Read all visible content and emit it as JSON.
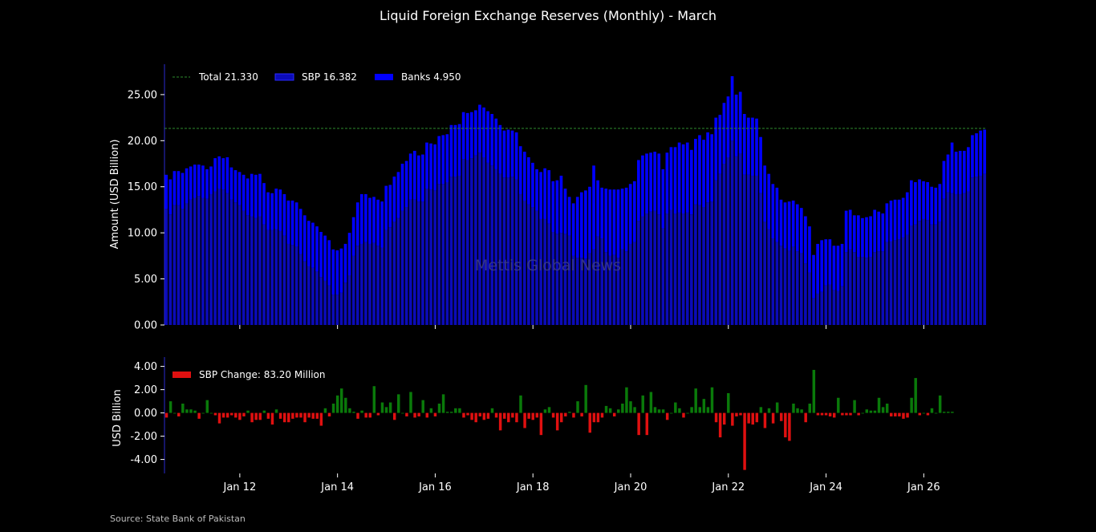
{
  "title": "Liquid Foreign Exchange Reserves (Monthly) - March",
  "source": "Source: State Bank of Pakistan",
  "watermark": "Mettis Global News",
  "colors": {
    "background": "#000000",
    "sbp": "#0b0bb8",
    "banks": "#0000ff",
    "total_line": "#2e8b2e",
    "positive": "#0a7a0a",
    "negative": "#e01010",
    "text": "#ffffff"
  },
  "chart_data": [
    {
      "type": "bar",
      "subtype": "stacked",
      "ylabel": "Amount (USD Billion)",
      "ylim": [
        0,
        28.3
      ],
      "yticks": [
        "0.00",
        "5.00",
        "10.00",
        "15.00",
        "20.00",
        "25.00"
      ],
      "legend": [
        "Total 21.330",
        "SBP 16.382",
        "Banks 4.950"
      ],
      "legend_position": "top-left",
      "reference_line": {
        "name": "Total",
        "value": 21.33
      },
      "series": [
        {
          "name": "SBP",
          "values": [
            12.6,
            12.0,
            13.0,
            13.0,
            12.6,
            13.2,
            13.6,
            13.8,
            14.0,
            13.8,
            13.7,
            14.2,
            14.5,
            14.8,
            14.7,
            14.3,
            13.6,
            13.3,
            13.0,
            12.4,
            11.9,
            11.8,
            11.6,
            11.8,
            10.9,
            10.3,
            10.3,
            10.4,
            10.2,
            9.7,
            8.8,
            8.7,
            8.5,
            7.7,
            6.9,
            6.4,
            6.2,
            5.8,
            5.2,
            4.8,
            4.3,
            3.3,
            3.3,
            3.5,
            4.6,
            5.4,
            7.5,
            8.6,
            8.8,
            9.0,
            8.8,
            8.9,
            8.6,
            8.4,
            10.3,
            10.6,
            11.2,
            11.6,
            12.4,
            12.8,
            13.6,
            13.6,
            13.4,
            13.4,
            14.8,
            14.7,
            14.6,
            15.3,
            15.3,
            15.5,
            16.1,
            16.1,
            16.2,
            18.0,
            17.9,
            18.1,
            18.4,
            18.7,
            18.2,
            17.6,
            17.3,
            16.9,
            16.4,
            16.0,
            16.0,
            16.1,
            15.8,
            14.2,
            13.5,
            13.1,
            12.8,
            12.4,
            11.5,
            11.5,
            11.0,
            10.1,
            9.9,
            10.0,
            9.9,
            9.7,
            7.5,
            7.3,
            7.3,
            7.2,
            7.8,
            8.2,
            9.6,
            9.4,
            7.9,
            7.5,
            7.6,
            7.3,
            8.2,
            8.0,
            8.8,
            9.0,
            11.3,
            11.8,
            12.1,
            12.3,
            12.4,
            12.0,
            10.5,
            12.1,
            12.5,
            12.1,
            12.2,
            12.1,
            12.2,
            12.0,
            13.1,
            13.0,
            12.8,
            13.3,
            13.4,
            15.7,
            16.4,
            17.5,
            18.2,
            20.0,
            18.3,
            18.6,
            16.3,
            16.3,
            16.2,
            16.2,
            14.3,
            11.2,
            10.4,
            9.4,
            9.0,
            8.6,
            8.3,
            8.1,
            8.5,
            8.0,
            7.8,
            6.7,
            5.7,
            2.9,
            3.4,
            3.6,
            4.3,
            4.4,
            3.8,
            3.7,
            4.2,
            7.9,
            8.2,
            7.9,
            7.4,
            7.4,
            7.3,
            7.4,
            7.9,
            8.0,
            8.0,
            9.0,
            9.1,
            9.2,
            9.3,
            9.5,
            9.8,
            10.8,
            10.9,
            11.3,
            11.5,
            11.4,
            10.9,
            10.9,
            11.2,
            13.7,
            14.4,
            14.3,
            14.2,
            14.2,
            14.3,
            14.5,
            16.0,
            16.1,
            16.2,
            16.4
          ],
          "color": "#0b0bb8"
        },
        {
          "name": "Banks",
          "values": [
            3.7,
            3.8,
            3.7,
            3.7,
            3.9,
            3.8,
            3.6,
            3.6,
            3.4,
            3.5,
            3.2,
            3.0,
            3.6,
            3.5,
            3.4,
            3.9,
            3.5,
            3.5,
            3.6,
            3.9,
            4.0,
            4.6,
            4.7,
            4.6,
            4.5,
            4.1,
            4.0,
            4.4,
            4.5,
            4.5,
            4.7,
            4.8,
            4.8,
            4.9,
            5.0,
            4.9,
            4.9,
            4.9,
            4.9,
            4.9,
            4.9,
            4.9,
            4.8,
            4.8,
            4.2,
            4.6,
            4.2,
            4.7,
            5.4,
            5.2,
            5.0,
            5.0,
            5.0,
            5.0,
            4.8,
            4.6,
            4.9,
            5.0,
            5.1,
            5.0,
            5.0,
            5.3,
            5.0,
            5.1,
            5.0,
            5.0,
            5.0,
            5.2,
            5.3,
            5.2,
            5.6,
            5.6,
            5.6,
            5.1,
            5.1,
            5.0,
            4.9,
            5.2,
            5.4,
            5.6,
            5.6,
            5.5,
            5.3,
            5.1,
            5.2,
            5.0,
            5.1,
            5.2,
            5.3,
            5.1,
            4.8,
            4.5,
            5.1,
            5.5,
            5.8,
            5.5,
            5.8,
            6.2,
            4.9,
            4.2,
            5.7,
            6.6,
            7.1,
            7.4,
            7.2,
            9.1,
            6.1,
            5.5,
            6.9,
            7.2,
            7.1,
            7.4,
            6.6,
            6.9,
            6.5,
            6.6,
            6.6,
            6.6,
            6.5,
            6.4,
            6.4,
            6.6,
            6.4,
            6.6,
            6.8,
            7.2,
            7.6,
            7.5,
            7.6,
            7.0,
            7.1,
            7.6,
            7.3,
            7.6,
            7.3,
            6.8,
            6.4,
            6.6,
            6.6,
            7.0,
            6.7,
            6.7,
            6.6,
            6.2,
            6.3,
            6.2,
            6.1,
            6.1,
            6.0,
            5.9,
            5.9,
            5.0,
            5.0,
            5.3,
            5.0,
            5.1,
            4.9,
            5.1,
            5.0,
            4.7,
            5.4,
            5.6,
            5.0,
            4.9,
            4.8,
            4.9,
            4.6,
            4.5,
            4.3,
            4.0,
            4.5,
            4.2,
            4.4,
            4.4,
            4.6,
            4.3,
            4.1,
            4.2,
            4.4,
            4.4,
            4.3,
            4.3,
            4.6,
            4.9,
            4.6,
            4.5,
            4.1,
            4.1,
            4.1,
            4.0,
            4.1,
            4.1,
            4.1,
            5.5,
            4.6,
            4.7,
            4.6,
            4.8,
            4.6,
            4.7,
            4.9,
            4.8,
            4.9,
            4.9
          ],
          "color": "#0000ff"
        }
      ]
    },
    {
      "type": "bar",
      "ylabel": "USD Billion",
      "ylim": [
        -5.2,
        4.8
      ],
      "yticks": [
        "-4.00",
        "-2.00",
        "0.00",
        "2.00",
        "4.00"
      ],
      "legend": [
        "SBP Change: 83.20 Million"
      ],
      "legend_position": "top-left",
      "series": [
        {
          "name": "SBP Change",
          "values": [
            -0.4,
            1.0,
            0.0,
            -0.3,
            0.8,
            0.3,
            0.3,
            0.2,
            -0.5,
            0.0,
            1.1,
            0.0,
            -0.2,
            -0.9,
            -0.4,
            -0.4,
            -0.2,
            -0.4,
            -0.6,
            -0.3,
            0.2,
            -0.8,
            -0.6,
            -0.6,
            0.2,
            -0.5,
            -1.0,
            0.3,
            -0.5,
            -0.8,
            -0.8,
            -0.5,
            -0.4,
            -0.4,
            -0.8,
            -0.4,
            -0.5,
            -0.5,
            -1.1,
            0.4,
            -0.3,
            0.8,
            1.5,
            2.1,
            1.3,
            0.4,
            0.1,
            -0.5,
            0.2,
            -0.4,
            -0.4,
            2.3,
            -0.2,
            0.9,
            0.5,
            0.9,
            -0.6,
            1.6,
            0.0,
            -0.3,
            1.8,
            -0.4,
            -0.3,
            1.1,
            -0.4,
            0.4,
            -0.3,
            0.8,
            1.6,
            0.1,
            0.1,
            0.4,
            0.4,
            -0.4,
            -0.2,
            -0.6,
            -0.8,
            -0.3,
            -0.6,
            -0.5,
            0.4,
            -0.4,
            -1.5,
            -0.5,
            -0.8,
            -0.4,
            -0.8,
            1.5,
            -1.3,
            -0.5,
            -0.6,
            -0.4,
            -1.9,
            0.3,
            0.5,
            -0.4,
            -1.5,
            -0.8,
            -0.3,
            0.1,
            -0.4,
            1.0,
            -0.3,
            2.4,
            -1.7,
            -0.8,
            -0.8,
            -0.4,
            0.6,
            0.4,
            -0.3,
            0.3,
            0.8,
            2.2,
            1.0,
            0.5,
            -1.9,
            1.5,
            -1.9,
            1.8,
            0.5,
            0.3,
            0.3,
            -0.6,
            0.0,
            0.9,
            0.4,
            -0.4,
            0.0,
            0.5,
            2.1,
            0.5,
            1.2,
            0.5,
            2.2,
            -0.8,
            -2.1,
            -1.0,
            1.7,
            -1.1,
            -0.3,
            -0.2,
            -4.9,
            -0.9,
            -1.0,
            -0.8,
            0.5,
            -1.3,
            0.4,
            -0.9,
            0.9,
            -0.7,
            -2.1,
            -2.4,
            0.8,
            0.4,
            0.3,
            -0.8,
            0.8,
            3.7,
            -0.2,
            -0.2,
            -0.2,
            -0.3,
            -0.4,
            1.3,
            -0.2,
            -0.2,
            -0.2,
            1.1,
            -0.2,
            0.0,
            0.3,
            0.2,
            0.2,
            1.3,
            0.5,
            0.8,
            -0.3,
            -0.3,
            -0.3,
            -0.5,
            -0.4,
            1.3,
            3.0,
            -0.2,
            0.0,
            -0.2,
            0.4,
            0.0,
            1.5,
            0.1,
            0.1,
            0.1
          ]
        }
      ]
    }
  ],
  "x_axis": {
    "ticks": [
      "Jan 12",
      "Jan 14",
      "Jan 16",
      "Jan 18",
      "Jan 20",
      "Jan 22",
      "Jan 24",
      "Jan 26"
    ],
    "start": "Jul 2010",
    "end": "Mar 2026"
  }
}
